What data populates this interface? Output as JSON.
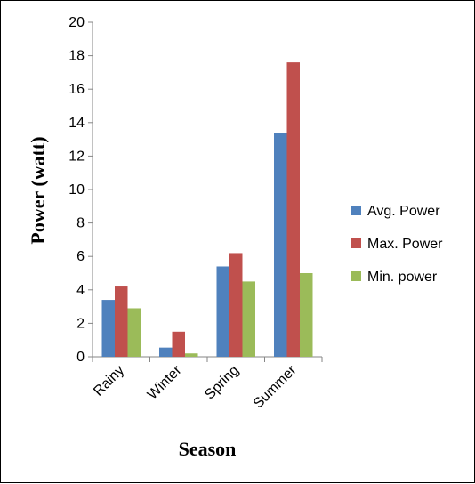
{
  "chart_data": {
    "type": "bar",
    "categories": [
      "Rainy",
      "Winter",
      "Spring",
      "Summer"
    ],
    "series": [
      {
        "name": "Avg. Power",
        "color": "#4F81BD",
        "values": [
          3.4,
          0.55,
          5.4,
          13.4
        ]
      },
      {
        "name": "Max. Power",
        "color": "#C0504D",
        "values": [
          4.2,
          1.5,
          6.2,
          17.6
        ]
      },
      {
        "name": "Min. power",
        "color": "#9BBB59",
        "values": [
          2.9,
          0.2,
          4.5,
          5.0
        ]
      }
    ],
    "title": "",
    "xlabel": "Season",
    "ylabel": "Power (watt)",
    "ylim": [
      0,
      20
    ],
    "yticks": [
      0,
      2,
      4,
      6,
      8,
      10,
      12,
      14,
      16,
      18,
      20
    ],
    "ytick_labels": [
      "0",
      "2",
      "4",
      "6",
      "8",
      "10",
      "12",
      "14",
      "16",
      "18",
      "20"
    ],
    "grid": false,
    "legend": "right"
  }
}
